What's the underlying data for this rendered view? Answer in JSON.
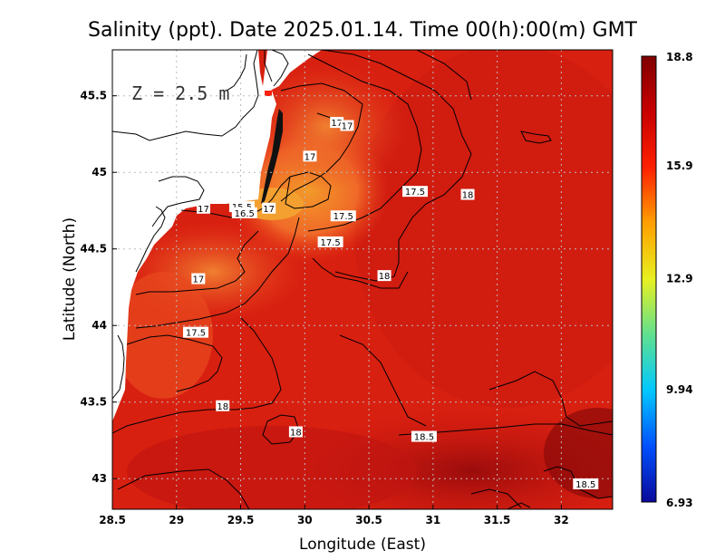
{
  "chart_data": {
    "type": "heatmap",
    "title": "Salinity (ppt). Date 2025.01.14. Time 00(h):00(m) GMT",
    "xlabel": "Longitude (East)",
    "ylabel": "Latitude (North)",
    "depth_label": "Z = 2.5 m",
    "xlim": [
      28.5,
      32.4
    ],
    "ylim": [
      42.8,
      45.8
    ],
    "x_ticks": [
      {
        "value": 28.5,
        "label": "28.5"
      },
      {
        "value": 29,
        "label": "29"
      },
      {
        "value": 29.5,
        "label": "29.5"
      },
      {
        "value": 30,
        "label": "30"
      },
      {
        "value": 30.5,
        "label": "30.5"
      },
      {
        "value": 31,
        "label": "31"
      },
      {
        "value": 31.5,
        "label": "31.5"
      },
      {
        "value": 32,
        "label": "32"
      }
    ],
    "y_ticks": [
      {
        "value": 43,
        "label": "43"
      },
      {
        "value": 43.5,
        "label": "43.5"
      },
      {
        "value": 44,
        "label": "44"
      },
      {
        "value": 44.5,
        "label": "44.5"
      },
      {
        "value": 45,
        "label": "45"
      },
      {
        "value": 45.5,
        "label": "45.5"
      }
    ],
    "grid": true,
    "colorbar": {
      "min": 6.93,
      "max": 18.8,
      "ticks": [
        {
          "value": 18.8,
          "label": "18.8"
        },
        {
          "value": 15.9,
          "label": "15.9"
        },
        {
          "value": 12.9,
          "label": "12.9"
        },
        {
          "value": 9.94,
          "label": "9.94"
        },
        {
          "value": 6.93,
          "label": "6.93"
        }
      ],
      "colors": [
        "#0a0a9a",
        "#0050ff",
        "#00c8ff",
        "#60e090",
        "#e8f020",
        "#ffa000",
        "#ff2000",
        "#c80000",
        "#800000"
      ]
    },
    "contour_labels": [
      {
        "lon": 30.25,
        "lat": 45.32,
        "text": "17"
      },
      {
        "lon": 30.33,
        "lat": 45.3,
        "text": "17"
      },
      {
        "lon": 30.04,
        "lat": 45.1,
        "text": "17"
      },
      {
        "lon": 30.86,
        "lat": 44.87,
        "text": "17.5"
      },
      {
        "lon": 31.27,
        "lat": 44.85,
        "text": "18"
      },
      {
        "lon": 29.21,
        "lat": 44.76,
        "text": "17"
      },
      {
        "lon": 29.51,
        "lat": 44.77,
        "text": "15.5"
      },
      {
        "lon": 29.53,
        "lat": 44.73,
        "text": "16.5"
      },
      {
        "lon": 29.72,
        "lat": 44.76,
        "text": "17"
      },
      {
        "lon": 30.3,
        "lat": 44.71,
        "text": "17.5"
      },
      {
        "lon": 30.2,
        "lat": 44.54,
        "text": "17.5"
      },
      {
        "lon": 30.62,
        "lat": 44.32,
        "text": "18"
      },
      {
        "lon": 29.17,
        "lat": 44.3,
        "text": "17"
      },
      {
        "lon": 29.15,
        "lat": 43.95,
        "text": "17.5"
      },
      {
        "lon": 29.36,
        "lat": 43.47,
        "text": "18"
      },
      {
        "lon": 29.93,
        "lat": 43.3,
        "text": "18"
      },
      {
        "lon": 30.93,
        "lat": 43.27,
        "text": "18.5"
      },
      {
        "lon": 32.19,
        "lat": 42.96,
        "text": "18.5"
      }
    ],
    "land_color": "#ffffff",
    "sea_base_color": "#e02210"
  }
}
